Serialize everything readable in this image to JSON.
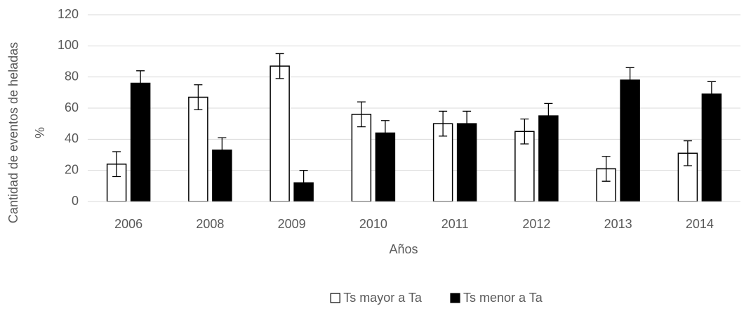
{
  "chart_data": {
    "type": "bar",
    "ylabel": [
      "Cantidad de eventos de heladas",
      "%"
    ],
    "xlabel": "Años",
    "categories": [
      "2006",
      "2008",
      "2009",
      "2010",
      "2011",
      "2012",
      "2013",
      "2014"
    ],
    "series": [
      {
        "name": "Ts mayor a Ta",
        "color": "#ffffff",
        "values": [
          24,
          67,
          87,
          56,
          50,
          45,
          21,
          31
        ],
        "errors": [
          8,
          8,
          8,
          8,
          8,
          8,
          8,
          8
        ]
      },
      {
        "name": "Ts menor a Ta",
        "color": "#000000",
        "values": [
          76,
          33,
          12,
          44,
          50,
          55,
          78,
          69
        ],
        "errors": [
          8,
          8,
          8,
          8,
          8,
          8,
          8,
          8
        ]
      }
    ],
    "ylim": [
      0,
      120
    ],
    "yticks": [
      0,
      20,
      40,
      60,
      80,
      100,
      120
    ],
    "grid": true,
    "legend": "bottom"
  }
}
